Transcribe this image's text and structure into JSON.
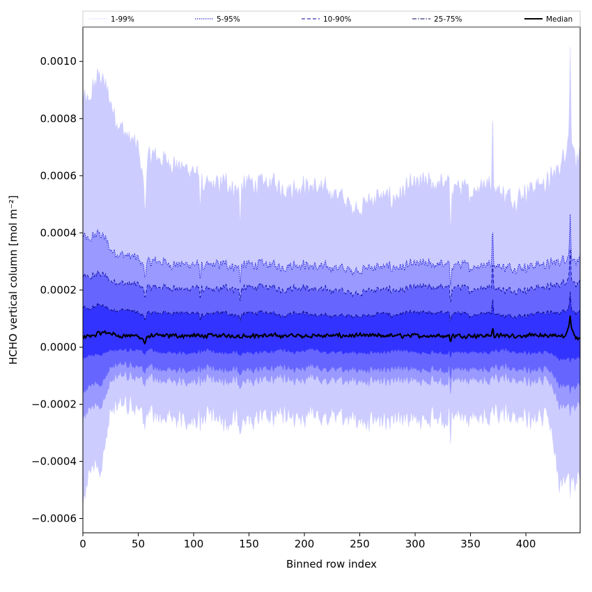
{
  "chart_data": {
    "type": "area",
    "title": "",
    "xlabel": "Binned row index",
    "ylabel": "HCHO vertical column [mol m⁻²]",
    "xlim": [
      0,
      449
    ],
    "ylim": [
      -0.00065,
      0.00112
    ],
    "xticks": [
      0,
      50,
      100,
      150,
      200,
      250,
      300,
      350,
      400
    ],
    "xtick_labels": [
      "0",
      "50",
      "100",
      "150",
      "200",
      "250",
      "300",
      "350",
      "400"
    ],
    "yticks": [
      -0.0006,
      -0.0004,
      -0.0002,
      0.0,
      0.0002,
      0.0004,
      0.0006,
      0.0008,
      0.001
    ],
    "ytick_labels": [
      "−0.0006",
      "−0.0004",
      "−0.0002",
      "0.0000",
      "0.0002",
      "0.0004",
      "0.0006",
      "0.0008",
      "0.0010"
    ],
    "grid": false,
    "legend_position": "top (above plot, spanning width)",
    "x_knots": [
      0,
      5,
      10,
      15,
      20,
      25,
      30,
      40,
      50,
      56,
      60,
      70,
      80,
      90,
      100,
      110,
      120,
      130,
      140,
      150,
      160,
      170,
      180,
      190,
      200,
      210,
      220,
      230,
      240,
      250,
      260,
      270,
      280,
      290,
      300,
      310,
      320,
      330,
      340,
      350,
      360,
      370,
      380,
      390,
      400,
      410,
      420,
      430,
      435,
      440,
      445,
      449
    ],
    "series": [
      {
        "name": "1-99%",
        "color": "#ccccff",
        "line_color": "#ccccff",
        "line_style": "dotted",
        "upper": [
          0.00088,
          0.00085,
          0.00092,
          0.00096,
          0.00092,
          0.00086,
          0.0008,
          0.00074,
          0.0007,
          0.00055,
          0.00068,
          0.00066,
          0.00065,
          0.00063,
          0.00062,
          0.00056,
          0.00057,
          0.00058,
          0.00055,
          0.00058,
          0.00057,
          0.00058,
          0.00056,
          0.00056,
          0.00057,
          0.00056,
          0.00055,
          0.00054,
          0.0005,
          0.00049,
          0.00052,
          0.00053,
          0.00052,
          0.00055,
          0.00057,
          0.00058,
          0.00057,
          0.00058,
          0.00056,
          0.00054,
          0.00058,
          0.00057,
          0.00054,
          0.00052,
          0.00055,
          0.00057,
          0.00058,
          0.00063,
          0.00068,
          0.00078,
          0.00066,
          0.00066
        ],
        "lower": [
          -0.00055,
          -0.00045,
          -0.00042,
          -0.00046,
          -0.00035,
          -0.00022,
          -0.0002,
          -0.0002,
          -0.00022,
          -0.00025,
          -0.00024,
          -0.00025,
          -0.00025,
          -0.00025,
          -0.00026,
          -0.00024,
          -0.00025,
          -0.00027,
          -0.00025,
          -0.00026,
          -0.00025,
          -0.00026,
          -0.00024,
          -0.00025,
          -0.00024,
          -0.00024,
          -0.00025,
          -0.00025,
          -0.00025,
          -0.00026,
          -0.00026,
          -0.00026,
          -0.00024,
          -0.00024,
          -0.00026,
          -0.00025,
          -0.00025,
          -0.00025,
          -0.00025,
          -0.00026,
          -0.00025,
          -0.00025,
          -0.00024,
          -0.00025,
          -0.00025,
          -0.00025,
          -0.00025,
          -0.00047,
          -0.00045,
          -0.00046,
          -0.00048,
          -0.00045
        ]
      },
      {
        "name": "5-95%",
        "color": "#9999ff",
        "line_color": "#0000cc",
        "line_style": "dotted",
        "upper": [
          0.00039,
          0.00037,
          0.00039,
          0.0004,
          0.00038,
          0.00034,
          0.00033,
          0.00032,
          0.00031,
          0.00028,
          0.0003,
          0.0003,
          0.00029,
          0.00029,
          0.00029,
          0.00028,
          0.00029,
          0.00029,
          0.00028,
          0.00029,
          0.00029,
          0.00029,
          0.00028,
          0.00029,
          0.00029,
          0.00028,
          0.00028,
          0.00028,
          0.00027,
          0.00027,
          0.00028,
          0.00028,
          0.00028,
          0.00028,
          0.00029,
          0.00029,
          0.00029,
          0.00029,
          0.00029,
          0.00028,
          0.00029,
          0.00029,
          0.00028,
          0.00028,
          0.00028,
          0.00029,
          0.00029,
          0.0003,
          0.00031,
          0.00033,
          0.0003,
          0.0003
        ],
        "lower": [
          -0.00025,
          -0.00022,
          -0.00021,
          -0.00022,
          -0.00018,
          -0.00012,
          -0.0001,
          -0.0001,
          -0.00011,
          -0.00012,
          -0.00011,
          -0.00012,
          -0.00012,
          -0.00012,
          -0.00012,
          -0.00011,
          -0.00012,
          -0.00012,
          -0.00012,
          -0.00012,
          -0.00012,
          -0.00012,
          -0.00011,
          -0.00012,
          -0.00011,
          -0.00011,
          -0.00012,
          -0.00012,
          -0.00012,
          -0.00012,
          -0.00012,
          -0.00012,
          -0.00011,
          -0.00011,
          -0.00012,
          -0.00012,
          -0.00012,
          -0.00012,
          -0.00012,
          -0.00012,
          -0.00012,
          -0.00012,
          -0.00011,
          -0.00012,
          -0.00012,
          -0.00012,
          -0.00012,
          -0.0002,
          -0.0002,
          -0.00021,
          -0.00021,
          -0.0002
        ]
      },
      {
        "name": "10-90%",
        "color": "#6666ff",
        "line_color": "#000099",
        "line_style": "dashed",
        "upper": [
          0.00025,
          0.00024,
          0.00025,
          0.00026,
          0.00025,
          0.00023,
          0.00023,
          0.00022,
          0.00022,
          0.0002,
          0.00021,
          0.00021,
          0.00021,
          0.0002,
          0.00021,
          0.0002,
          0.0002,
          0.00021,
          0.0002,
          0.00021,
          0.00021,
          0.00021,
          0.0002,
          0.00021,
          0.00021,
          0.0002,
          0.0002,
          0.0002,
          0.00019,
          0.00019,
          0.0002,
          0.0002,
          0.0002,
          0.0002,
          0.00021,
          0.00021,
          0.00021,
          0.00021,
          0.00021,
          0.0002,
          0.00021,
          0.00021,
          0.0002,
          0.0002,
          0.0002,
          0.00021,
          0.00021,
          0.00022,
          0.00023,
          0.00025,
          0.00022,
          0.00022
        ],
        "lower": [
          -0.00016,
          -0.00014,
          -0.00013,
          -0.00014,
          -0.00011,
          -7e-05,
          -6e-05,
          -6e-05,
          -7e-05,
          -8e-05,
          -7e-05,
          -8e-05,
          -8e-05,
          -8e-05,
          -8e-05,
          -7e-05,
          -8e-05,
          -8e-05,
          -8e-05,
          -8e-05,
          -8e-05,
          -8e-05,
          -7e-05,
          -8e-05,
          -7e-05,
          -7e-05,
          -8e-05,
          -8e-05,
          -8e-05,
          -8e-05,
          -8e-05,
          -8e-05,
          -7e-05,
          -7e-05,
          -8e-05,
          -8e-05,
          -8e-05,
          -8e-05,
          -8e-05,
          -8e-05,
          -8e-05,
          -8e-05,
          -7e-05,
          -8e-05,
          -8e-05,
          -8e-05,
          -8e-05,
          -0.00013,
          -0.00013,
          -0.00014,
          -0.00014,
          -0.00013
        ]
      },
      {
        "name": "25-75%",
        "color": "#3333ff",
        "line_color": "#000066",
        "line_style": "dashdot",
        "upper": [
          0.00014,
          0.00013,
          0.00014,
          0.00015,
          0.00014,
          0.00013,
          0.00013,
          0.00013,
          0.00012,
          0.00011,
          0.00012,
          0.00012,
          0.00012,
          0.00012,
          0.00012,
          0.00011,
          0.00012,
          0.00012,
          0.00011,
          0.00012,
          0.00012,
          0.00012,
          0.00011,
          0.00012,
          0.00012,
          0.00011,
          0.00011,
          0.00011,
          0.00011,
          0.00011,
          0.00011,
          0.00012,
          0.00011,
          0.00012,
          0.00012,
          0.00012,
          0.00012,
          0.00012,
          0.00012,
          0.00011,
          0.00012,
          0.00012,
          0.00011,
          0.00011,
          0.00011,
          0.00012,
          0.00012,
          0.00012,
          0.00013,
          0.00014,
          0.00012,
          0.00012
        ],
        "lower": [
          -4e-05,
          -3e-05,
          -3e-05,
          -3e-05,
          -2e-05,
          -1e-05,
          -1e-05,
          -1e-05,
          -1e-05,
          -2e-05,
          -1e-05,
          -2e-05,
          -2e-05,
          -2e-05,
          -2e-05,
          -1e-05,
          -2e-05,
          -2e-05,
          -2e-05,
          -2e-05,
          -2e-05,
          -2e-05,
          -1e-05,
          -2e-05,
          -1e-05,
          -1e-05,
          -2e-05,
          -2e-05,
          -2e-05,
          -2e-05,
          -2e-05,
          -2e-05,
          -1e-05,
          -1e-05,
          -2e-05,
          -2e-05,
          -2e-05,
          -2e-05,
          -2e-05,
          -2e-05,
          -2e-05,
          -2e-05,
          -1e-05,
          -2e-05,
          -2e-05,
          -2e-05,
          -2e-05,
          -4e-05,
          -4e-05,
          -4e-05,
          -4e-05,
          -4e-05
        ]
      },
      {
        "name": "Median",
        "color": "#000000",
        "line_style": "solid",
        "values": [
          3e-05,
          4e-05,
          4e-05,
          5e-05,
          5e-05,
          5e-05,
          4e-05,
          4e-05,
          4e-05,
          2e-05,
          4e-05,
          4e-05,
          4e-05,
          4e-05,
          4e-05,
          4e-05,
          4e-05,
          4e-05,
          4e-05,
          4e-05,
          4e-05,
          4e-05,
          4e-05,
          4e-05,
          4e-05,
          4e-05,
          4e-05,
          4e-05,
          4e-05,
          4e-05,
          4e-05,
          4e-05,
          4e-05,
          4e-05,
          4e-05,
          4e-05,
          4e-05,
          4e-05,
          4e-05,
          4e-05,
          4e-05,
          4e-05,
          4e-05,
          4e-05,
          4e-05,
          4e-05,
          4e-05,
          4e-05,
          4e-05,
          8e-05,
          3e-05,
          3e-05
        ]
      }
    ],
    "spikes": [
      {
        "x": 56,
        "upper_dy": -8e-05,
        "lower_dy": -2e-05
      },
      {
        "x": 106,
        "upper_dy": -7e-05,
        "lower_dy": -3e-05
      },
      {
        "x": 142,
        "upper_dy": -0.00011,
        "lower_dy": -3e-05
      },
      {
        "x": 332,
        "upper_dy": -0.00022,
        "lower_dy": -0.00013
      },
      {
        "x": 370,
        "upper_dy": 0.00028,
        "lower_dy": 0.0
      },
      {
        "x": 440,
        "upper_dy": 0.00027,
        "lower_dy": -4e-05
      }
    ]
  }
}
